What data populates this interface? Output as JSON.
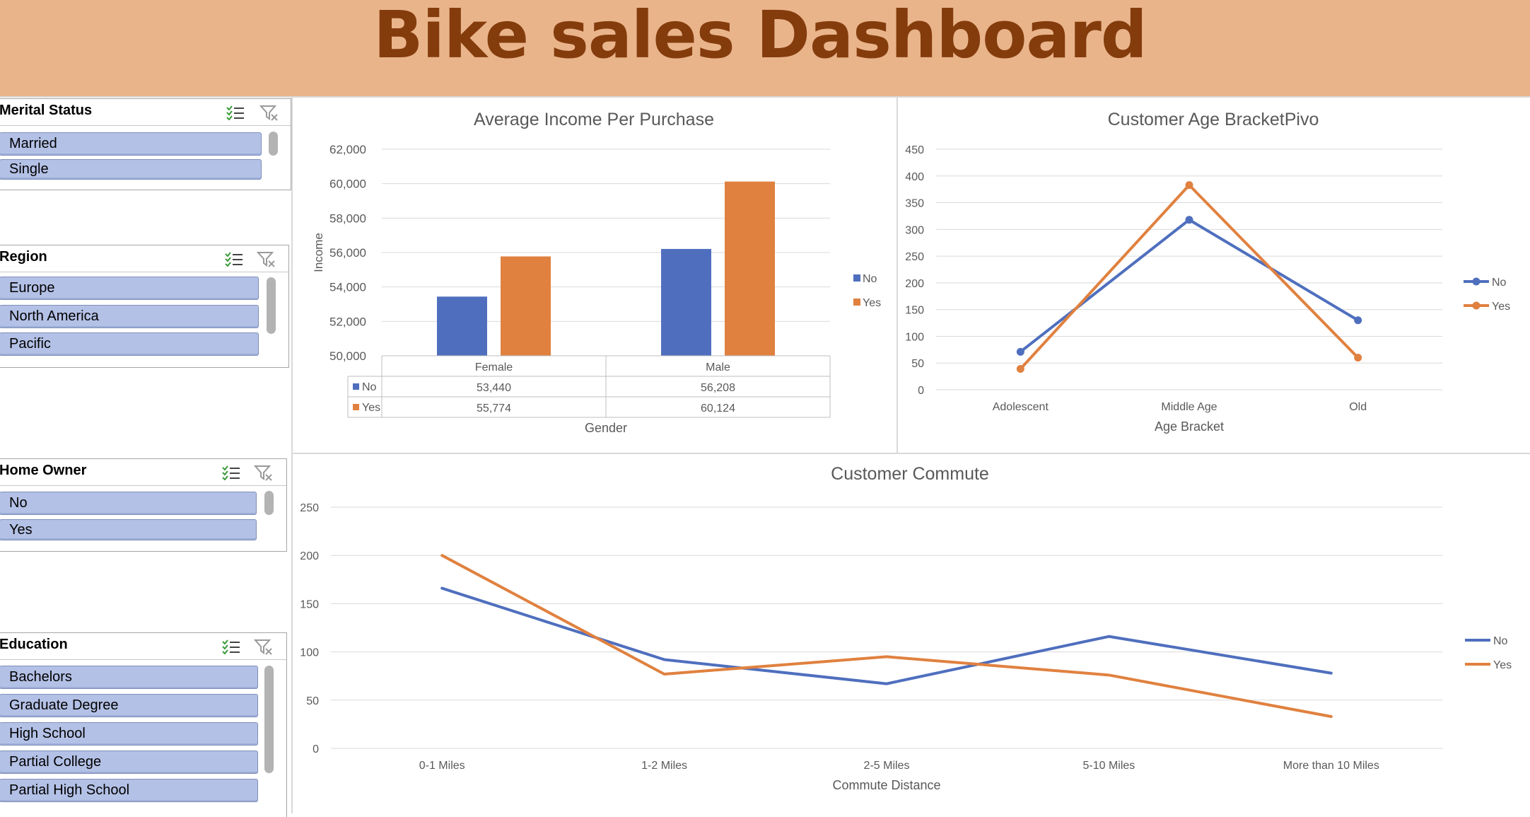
{
  "header": {
    "title": "Bike sales Dashboard"
  },
  "colors": {
    "no": "#4f6fbe",
    "yes": "#e0813f",
    "header_bg": "#eab48b",
    "title": "#843c0c",
    "slicer_item": "#b4c1e6",
    "grid": "#d9d9d9"
  },
  "slicers": [
    {
      "title": "Merital Status",
      "items": [
        "Married",
        "Single"
      ]
    },
    {
      "title": "Region",
      "items": [
        "Europe",
        "North America",
        "Pacific"
      ]
    },
    {
      "title": "Home Owner",
      "items": [
        "No",
        "Yes"
      ]
    },
    {
      "title": "Education",
      "items": [
        "Bachelors",
        "Graduate Degree",
        "High School",
        "Partial College",
        "Partial High School"
      ]
    }
  ],
  "slicer_icons": {
    "multi_select": "multi-select-icon",
    "clear_filter": "clear-filter-icon"
  },
  "chart_data": [
    {
      "type": "bar",
      "title": "Average Income Per Purchase",
      "xlabel": "Gender",
      "ylabel": "Income",
      "categories": [
        "Female",
        "Male"
      ],
      "series": [
        {
          "name": "No",
          "values": [
            53440,
            56208
          ],
          "labels": [
            "53,440",
            "56,208"
          ]
        },
        {
          "name": "Yes",
          "values": [
            55774,
            60124
          ],
          "labels": [
            "55,774",
            "60,124"
          ]
        }
      ],
      "ylim": [
        50000,
        62000
      ],
      "yticks": [
        "50,000",
        "52,000",
        "54,000",
        "56,000",
        "58,000",
        "60,000",
        "62,000"
      ],
      "legend": "right",
      "data_table": true,
      "grid": true
    },
    {
      "type": "line",
      "title": "Customer Age BracketPivo",
      "xlabel": "Age Bracket",
      "ylabel": "",
      "categories": [
        "Adolescent",
        "Middle Age",
        "Old"
      ],
      "series": [
        {
          "name": "No",
          "values": [
            71,
            318,
            130
          ]
        },
        {
          "name": "Yes",
          "values": [
            39,
            383,
            60
          ]
        }
      ],
      "ylim": [
        0,
        450
      ],
      "yticks": [
        "0",
        "50",
        "100",
        "150",
        "200",
        "250",
        "300",
        "350",
        "400",
        "450"
      ],
      "markers": true,
      "legend": "right",
      "grid": true
    },
    {
      "type": "line",
      "title": "Customer Commute",
      "xlabel": "Commute Distance",
      "ylabel": "",
      "categories": [
        "0-1 Miles",
        "1-2 Miles",
        "2-5 Miles",
        "5-10 Miles",
        "More than 10 Miles"
      ],
      "series": [
        {
          "name": "No",
          "values": [
            166,
            92,
            67,
            116,
            78
          ]
        },
        {
          "name": "Yes",
          "values": [
            200,
            77,
            95,
            76,
            33
          ]
        }
      ],
      "ylim": [
        0,
        250
      ],
      "yticks": [
        "0",
        "50",
        "100",
        "150",
        "200",
        "250"
      ],
      "markers": false,
      "legend": "right",
      "grid": true
    }
  ]
}
